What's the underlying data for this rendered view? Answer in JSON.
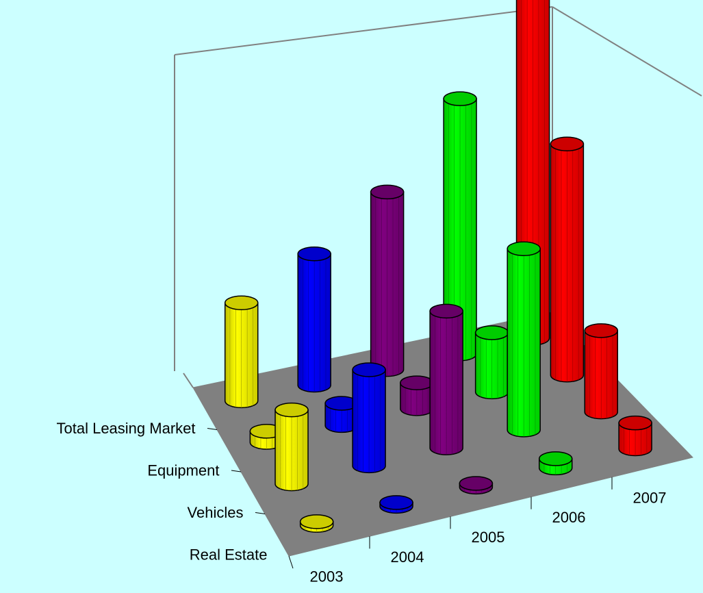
{
  "chart_data": {
    "type": "bar",
    "bar_style": "3d-cylinder",
    "categories": [
      "2003",
      "2004",
      "2005",
      "2006",
      "2007"
    ],
    "series": [
      {
        "name": "Total Leasing Market",
        "color_by_category": [
          "#ffff00",
          "#0000ff",
          "#800080",
          "#00ff00",
          "#ff0000"
        ],
        "values": [
          5.3,
          7.1,
          9.6,
          13.8,
          19.1
        ]
      },
      {
        "name": "Equipment",
        "color_by_category": [
          "#ffff00",
          "#0000ff",
          "#800080",
          "#00ff00",
          "#ff0000"
        ],
        "values": [
          0.6,
          1.2,
          1.4,
          3.2,
          12.5
        ]
      },
      {
        "name": "Vehicles",
        "color_by_category": [
          "#ffff00",
          "#0000ff",
          "#800080",
          "#00ff00",
          "#ff0000"
        ],
        "values": [
          4.0,
          5.2,
          7.4,
          9.8,
          4.4
        ]
      },
      {
        "name": "Real Estate",
        "color_by_category": [
          "#ffff00",
          "#0000ff",
          "#800080",
          "#00ff00",
          "#ff0000"
        ],
        "values": [
          0.2,
          0.2,
          0.2,
          0.5,
          1.4
        ]
      }
    ],
    "x_labels": [
      "2003",
      "2004",
      "2005",
      "2006",
      "2007"
    ],
    "depth_labels": [
      "Total Leasing Market",
      "Equipment",
      "Vehicles",
      "Real Estate"
    ],
    "title": "",
    "xlabel": "",
    "ylabel": "",
    "grid": false,
    "legend": "none",
    "colors": {
      "background": "#ccffff",
      "floor": "#808080",
      "wall_line": "#808080"
    }
  }
}
